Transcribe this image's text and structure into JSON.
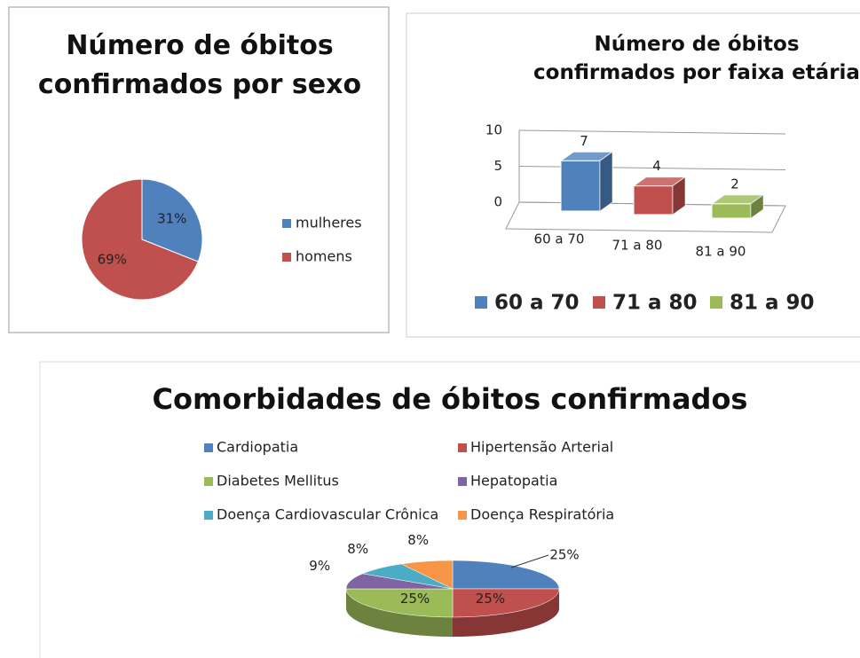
{
  "chart_data": [
    {
      "type": "pie",
      "title": "Número de óbitos confirmados por sexo",
      "categories": [
        "mulheres",
        "homens"
      ],
      "values": [
        31,
        69
      ],
      "value_labels": [
        "31%",
        "69%"
      ],
      "colors": [
        "#4f81bd",
        "#c0504d"
      ],
      "legend": "right"
    },
    {
      "type": "bar",
      "title": "Número de óbitos confirmados por faixa etária",
      "categories": [
        "60 a 70",
        "71 a 80",
        "81 a 90"
      ],
      "values": [
        7,
        4,
        2
      ],
      "colors": [
        "#4f81bd",
        "#c0504d",
        "#9bbb59"
      ],
      "ylim": [
        0,
        10
      ],
      "yticks": [
        0,
        5,
        10
      ],
      "grid": true,
      "legend": "bottom"
    },
    {
      "type": "pie",
      "title": "Comorbidades de óbitos confirmados",
      "categories": [
        "Cardiopatia",
        "Hipertensão Arterial",
        "Diabetes Mellitus",
        "Hepatopatia",
        "Doença Cardiovascular Crônica",
        "Doença Respiratória"
      ],
      "values": [
        25,
        25,
        25,
        9,
        8,
        8
      ],
      "value_labels": [
        "25%",
        "25%",
        "25%",
        "9%",
        "8%",
        "8%"
      ],
      "colors": [
        "#4f81bd",
        "#c0504d",
        "#9bbb59",
        "#8064a2",
        "#4bacc6",
        "#f79646"
      ],
      "legend": "top"
    }
  ]
}
